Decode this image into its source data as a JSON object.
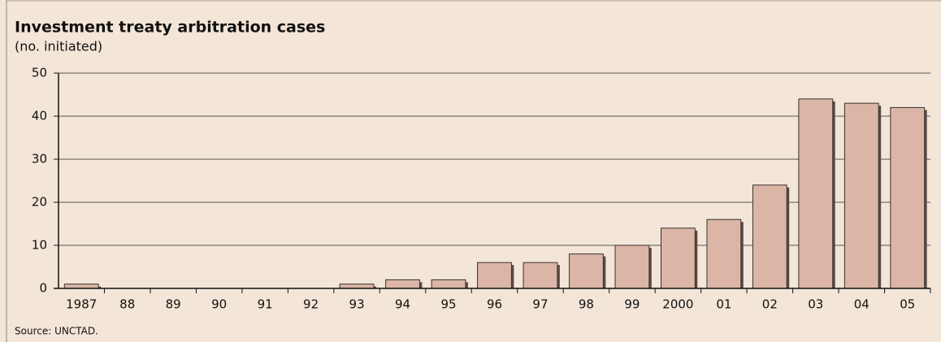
{
  "chart_data": {
    "type": "bar",
    "title": "Investment treaty arbitration cases",
    "subtitle": "(no. initiated)",
    "source": "Source: UNCTAD.",
    "categories": [
      "1987",
      "88",
      "89",
      "90",
      "91",
      "92",
      "93",
      "94",
      "95",
      "96",
      "97",
      "98",
      "99",
      "2000",
      "01",
      "02",
      "03",
      "04",
      "05"
    ],
    "values": [
      1,
      0,
      0,
      0,
      0,
      0,
      1,
      2,
      2,
      6,
      6,
      8,
      10,
      14,
      16,
      24,
      44,
      43,
      42
    ],
    "color": "#dbb6a6",
    "ylim": [
      0,
      50
    ],
    "yticks": [
      0,
      10,
      20,
      30,
      40,
      50
    ],
    "grid": true
  }
}
